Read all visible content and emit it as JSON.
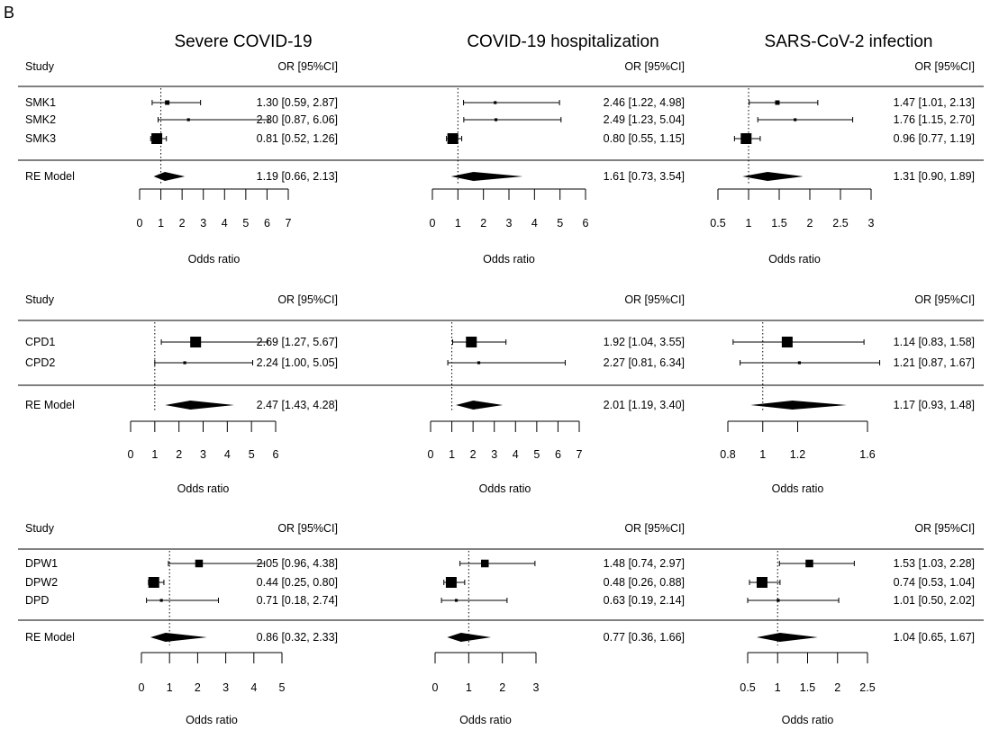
{
  "panel_label": "B",
  "columns": [
    "Severe COVID-19",
    "COVID-19 hospitalization",
    "SARS-CoV-2 infection"
  ],
  "header": {
    "study": "Study",
    "or_ci": "OR [95%CI]"
  },
  "chart_data": [
    {
      "type": "forest",
      "row": 0,
      "col": 0,
      "xlabel": "Odds ratio",
      "xlim": [
        0,
        7
      ],
      "ticks": [
        0,
        1,
        2,
        3,
        4,
        5,
        6,
        7
      ],
      "tick_labels": [
        "0",
        "1",
        "2",
        "3",
        "4",
        "5",
        "6",
        "7"
      ],
      "ref": 1,
      "studies": [
        {
          "label": "SMK1",
          "or": 1.3,
          "lo": 0.59,
          "hi": 2.87,
          "ci_text": "1.30 [0.59, 2.87]",
          "weight": "small"
        },
        {
          "label": "SMK2",
          "or": 2.3,
          "lo": 0.87,
          "hi": 6.06,
          "ci_text": "2.30 [0.87, 6.06]",
          "weight": "tiny"
        },
        {
          "label": "SMK3",
          "or": 0.81,
          "lo": 0.52,
          "hi": 1.26,
          "ci_text": "0.81 [0.52, 1.26]",
          "weight": "large"
        }
      ],
      "pooled": {
        "label": "RE Model",
        "or": 1.19,
        "lo": 0.66,
        "hi": 2.13,
        "ci_text": "1.19 [0.66, 2.13]"
      }
    },
    {
      "type": "forest",
      "row": 0,
      "col": 1,
      "xlabel": "Odds ratio",
      "xlim": [
        0,
        6
      ],
      "ticks": [
        0,
        1,
        2,
        3,
        4,
        5,
        6
      ],
      "tick_labels": [
        "0",
        "1",
        "2",
        "3",
        "4",
        "5",
        "6"
      ],
      "ref": 1,
      "studies": [
        {
          "label": "",
          "or": 2.46,
          "lo": 1.22,
          "hi": 4.98,
          "ci_text": "2.46 [1.22, 4.98]",
          "weight": "tiny"
        },
        {
          "label": "",
          "or": 2.49,
          "lo": 1.23,
          "hi": 5.04,
          "ci_text": "2.49 [1.23, 5.04]",
          "weight": "tiny"
        },
        {
          "label": "",
          "or": 0.8,
          "lo": 0.55,
          "hi": 1.15,
          "ci_text": "0.80 [0.55, 1.15]",
          "weight": "large"
        }
      ],
      "pooled": {
        "label": "",
        "or": 1.61,
        "lo": 0.73,
        "hi": 3.54,
        "ci_text": "1.61 [0.73, 3.54]"
      }
    },
    {
      "type": "forest",
      "row": 0,
      "col": 2,
      "xlabel": "Odds ratio",
      "xlim": [
        0.5,
        3
      ],
      "ticks": [
        0.5,
        1,
        1.5,
        2,
        2.5,
        3
      ],
      "tick_labels": [
        "0.5",
        "1",
        "1.5",
        "2",
        "2.5",
        "3"
      ],
      "ref": 1,
      "studies": [
        {
          "label": "",
          "or": 1.47,
          "lo": 1.01,
          "hi": 2.13,
          "ci_text": "1.47 [1.01, 2.13]",
          "weight": "small"
        },
        {
          "label": "",
          "or": 1.76,
          "lo": 1.15,
          "hi": 2.7,
          "ci_text": "1.76 [1.15, 2.70]",
          "weight": "tiny"
        },
        {
          "label": "",
          "or": 0.96,
          "lo": 0.77,
          "hi": 1.19,
          "ci_text": "0.96 [0.77, 1.19]",
          "weight": "large"
        }
      ],
      "pooled": {
        "label": "",
        "or": 1.31,
        "lo": 0.9,
        "hi": 1.89,
        "ci_text": "1.31 [0.90, 1.89]"
      }
    },
    {
      "type": "forest",
      "row": 1,
      "col": 0,
      "xlabel": "Odds ratio",
      "xlim": [
        0,
        6
      ],
      "ticks": [
        0,
        1,
        2,
        3,
        4,
        5,
        6
      ],
      "tick_labels": [
        "0",
        "1",
        "2",
        "3",
        "4",
        "5",
        "6"
      ],
      "ref": 1,
      "studies": [
        {
          "label": "CPD1",
          "or": 2.69,
          "lo": 1.27,
          "hi": 5.67,
          "ci_text": "2.69 [1.27, 5.67]",
          "weight": "large"
        },
        {
          "label": "CPD2",
          "or": 2.24,
          "lo": 1.0,
          "hi": 5.05,
          "ci_text": "2.24 [1.00, 5.05]",
          "weight": "tiny"
        }
      ],
      "pooled": {
        "label": "RE Model",
        "or": 2.47,
        "lo": 1.43,
        "hi": 4.28,
        "ci_text": "2.47 [1.43, 4.28]"
      }
    },
    {
      "type": "forest",
      "row": 1,
      "col": 1,
      "xlabel": "Odds ratio",
      "xlim": [
        0,
        7
      ],
      "ticks": [
        0,
        1,
        2,
        3,
        4,
        5,
        6,
        7
      ],
      "tick_labels": [
        "0",
        "1",
        "2",
        "3",
        "4",
        "5",
        "6",
        "7"
      ],
      "ref": 1,
      "studies": [
        {
          "label": "",
          "or": 1.92,
          "lo": 1.04,
          "hi": 3.55,
          "ci_text": "1.92 [1.04, 3.55]",
          "weight": "large"
        },
        {
          "label": "",
          "or": 2.27,
          "lo": 0.81,
          "hi": 6.34,
          "ci_text": "2.27 [0.81, 6.34]",
          "weight": "tiny"
        }
      ],
      "pooled": {
        "label": "",
        "or": 2.01,
        "lo": 1.19,
        "hi": 3.4,
        "ci_text": "2.01 [1.19, 3.40]"
      }
    },
    {
      "type": "forest",
      "row": 1,
      "col": 2,
      "xlabel": "Odds ratio",
      "xlim": [
        0.7,
        1.8
      ],
      "ticks": [
        0.8,
        1,
        1.2,
        1.6
      ],
      "tick_labels": [
        "0.8",
        "1",
        "1.2",
        "1.6"
      ],
      "ref": 1,
      "studies": [
        {
          "label": "",
          "or": 1.14,
          "lo": 0.83,
          "hi": 1.58,
          "ci_text": "1.14 [0.83, 1.58]",
          "weight": "large"
        },
        {
          "label": "",
          "or": 1.21,
          "lo": 0.87,
          "hi": 1.67,
          "ci_text": "1.21 [0.87, 1.67]",
          "weight": "tiny"
        }
      ],
      "pooled": {
        "label": "",
        "or": 1.17,
        "lo": 0.93,
        "hi": 1.48,
        "ci_text": "1.17 [0.93, 1.48]"
      }
    },
    {
      "type": "forest",
      "row": 2,
      "col": 0,
      "xlabel": "Odds ratio",
      "xlim": [
        0,
        5
      ],
      "ticks": [
        0,
        1,
        2,
        3,
        4,
        5
      ],
      "tick_labels": [
        "0",
        "1",
        "2",
        "3",
        "4",
        "5"
      ],
      "ref": 1,
      "studies": [
        {
          "label": "DPW1",
          "or": 2.05,
          "lo": 0.96,
          "hi": 4.38,
          "ci_text": "2.05 [0.96, 4.38]",
          "weight": "medium"
        },
        {
          "label": "DPW2",
          "or": 0.44,
          "lo": 0.25,
          "hi": 0.8,
          "ci_text": "0.44 [0.25, 0.80]",
          "weight": "large"
        },
        {
          "label": "DPD",
          "or": 0.71,
          "lo": 0.18,
          "hi": 2.74,
          "ci_text": "0.71 [0.18, 2.74]",
          "weight": "tiny"
        }
      ],
      "pooled": {
        "label": "RE Model",
        "or": 0.86,
        "lo": 0.32,
        "hi": 2.33,
        "ci_text": "0.86 [0.32, 2.33]"
      }
    },
    {
      "type": "forest",
      "row": 2,
      "col": 1,
      "xlabel": "Odds ratio",
      "xlim": [
        0,
        3
      ],
      "ticks": [
        0,
        1,
        2,
        3
      ],
      "tick_labels": [
        "0",
        "1",
        "2",
        "3"
      ],
      "ref": 1,
      "studies": [
        {
          "label": "",
          "or": 1.48,
          "lo": 0.74,
          "hi": 2.97,
          "ci_text": "1.48 [0.74, 2.97]",
          "weight": "medium"
        },
        {
          "label": "",
          "or": 0.48,
          "lo": 0.26,
          "hi": 0.88,
          "ci_text": "0.48 [0.26, 0.88]",
          "weight": "large"
        },
        {
          "label": "",
          "or": 0.63,
          "lo": 0.19,
          "hi": 2.14,
          "ci_text": "0.63 [0.19, 2.14]",
          "weight": "tiny"
        }
      ],
      "pooled": {
        "label": "",
        "or": 0.77,
        "lo": 0.36,
        "hi": 1.66,
        "ci_text": "0.77 [0.36, 1.66]"
      }
    },
    {
      "type": "forest",
      "row": 2,
      "col": 2,
      "xlabel": "Odds ratio",
      "xlim": [
        0.5,
        2.5
      ],
      "ticks": [
        0.5,
        1,
        1.5,
        2,
        2.5
      ],
      "tick_labels": [
        "0.5",
        "1",
        "1.5",
        "2",
        "2.5"
      ],
      "ref": 1,
      "studies": [
        {
          "label": "",
          "or": 1.53,
          "lo": 1.03,
          "hi": 2.28,
          "ci_text": "1.53 [1.03, 2.28]",
          "weight": "medium"
        },
        {
          "label": "",
          "or": 0.74,
          "lo": 0.53,
          "hi": 1.04,
          "ci_text": "0.74 [0.53, 1.04]",
          "weight": "large"
        },
        {
          "label": "",
          "or": 1.01,
          "lo": 0.5,
          "hi": 2.02,
          "ci_text": "1.01 [0.50, 2.02]",
          "weight": "tiny"
        }
      ],
      "pooled": {
        "label": "",
        "or": 1.04,
        "lo": 0.65,
        "hi": 1.67,
        "ci_text": "1.04 [0.65, 1.67]"
      }
    }
  ]
}
